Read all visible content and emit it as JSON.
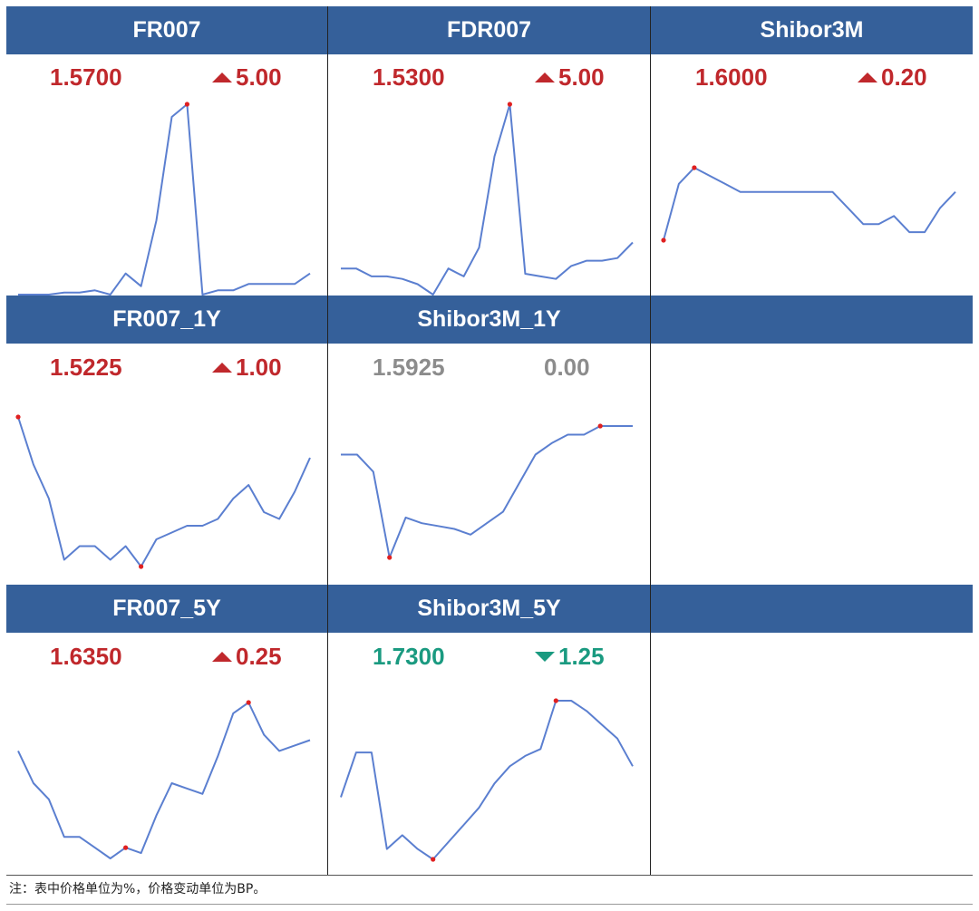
{
  "colors": {
    "header_bg": "#35609a",
    "header_text": "#ffffff",
    "line": "#5b7fd0",
    "marker": "#e02020",
    "up": "#c0282c",
    "down": "#1a9a80",
    "flat": "#8c8c8c"
  },
  "panels": [
    {
      "title": "FR007",
      "value": "1.5700",
      "change": "5.00",
      "direction": "up",
      "chart_data": {
        "type": "line",
        "points": [
          0,
          0,
          0,
          1,
          1,
          2,
          0,
          10,
          4,
          35,
          84,
          90,
          0,
          2,
          2,
          5,
          5,
          5,
          5,
          10
        ],
        "highlight": [
          11
        ]
      }
    },
    {
      "title": "FDR007",
      "value": "1.5300",
      "change": "5.00",
      "direction": "up",
      "chart_data": {
        "type": "line",
        "points": [
          7,
          7,
          4,
          4,
          3,
          1,
          -3,
          7,
          4,
          15,
          50,
          70,
          5,
          4,
          3,
          8,
          10,
          10,
          11,
          17
        ],
        "highlight": [
          11
        ]
      }
    },
    {
      "title": "Shibor3M",
      "value": "1.6000",
      "change": "0.20",
      "direction": "up",
      "chart_data": {
        "type": "line",
        "points": [
          1.577,
          1.584,
          1.586,
          1.585,
          1.584,
          1.583,
          1.583,
          1.583,
          1.583,
          1.583,
          1.583,
          1.583,
          1.581,
          1.579,
          1.579,
          1.58,
          1.578,
          1.578,
          1.581,
          1.583
        ],
        "highlight": [
          0,
          2
        ]
      }
    },
    {
      "title": "FR007_1Y",
      "value": "1.5225",
      "change": "1.00",
      "direction": "up",
      "chart_data": {
        "type": "line",
        "points": [
          1.545,
          1.538,
          1.533,
          1.524,
          1.526,
          1.526,
          1.524,
          1.526,
          1.523,
          1.527,
          1.528,
          1.529,
          1.529,
          1.53,
          1.533,
          1.535,
          1.531,
          1.53,
          1.534,
          1.539
        ],
        "highlight": [
          0,
          8
        ]
      }
    },
    {
      "title": "Shibor3M_1Y",
      "value": "1.5925",
      "change": "0.00",
      "direction": "flat",
      "chart_data": {
        "type": "line",
        "points": [
          1.594,
          1.594,
          1.591,
          1.576,
          1.583,
          1.582,
          1.5815,
          1.581,
          1.58,
          1.582,
          1.584,
          1.589,
          1.594,
          1.596,
          1.5975,
          1.5975,
          1.599,
          1.599,
          1.599
        ],
        "highlight": [
          3,
          16
        ]
      }
    },
    {
      "title": "FR007_5Y",
      "value": "1.6350",
      "change": "0.25",
      "direction": "up",
      "chart_data": {
        "type": "line",
        "points": [
          1.63,
          1.624,
          1.621,
          1.614,
          1.614,
          1.612,
          1.61,
          1.612,
          1.611,
          1.618,
          1.624,
          1.623,
          1.622,
          1.629,
          1.637,
          1.639,
          1.633,
          1.63,
          1.631,
          1.632
        ],
        "highlight": [
          7,
          15
        ]
      }
    },
    {
      "title": "Shibor3M_5Y",
      "value": "1.7300",
      "change": "1.25",
      "direction": "down",
      "chart_data": {
        "type": "line",
        "points": [
          1.69,
          1.703,
          1.703,
          1.675,
          1.679,
          1.675,
          1.672,
          1.677,
          1.682,
          1.687,
          1.694,
          1.699,
          1.702,
          1.704,
          1.718,
          1.718,
          1.715,
          1.711,
          1.707,
          1.699
        ],
        "highlight": [
          6,
          14
        ]
      }
    }
  ],
  "footnote": "注：表中价格单位为%，价格变动单位为BP。"
}
